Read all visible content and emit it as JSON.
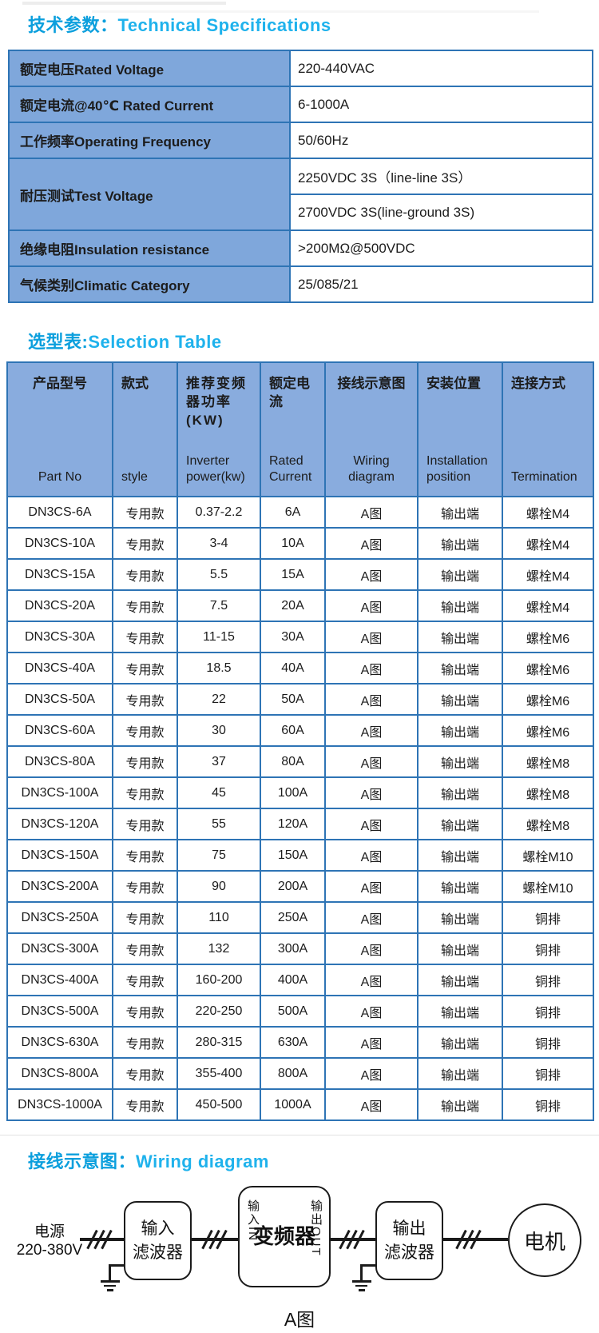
{
  "titles": {
    "tech_specs_zh": "技术参数：",
    "tech_specs_en": "Technical Specifications",
    "selection_zh": "选型表:",
    "selection_en": "Selection Table",
    "wiring_zh": "接线示意图：",
    "wiring_en": "Wiring diagram"
  },
  "colors": {
    "title_accent": "#0fa9e6",
    "table_border": "#2e74b5",
    "label_fill": "#7fa7db",
    "header_fill": "#89acde"
  },
  "spec_table": {
    "rows": [
      {
        "label": "额定电压Rated Voltage",
        "values": [
          "220-440VAC"
        ]
      },
      {
        "label": "额定电流@40℃ Rated Current",
        "values": [
          "6-1000A"
        ]
      },
      {
        "label": "工作频率Operating Frequency",
        "values": [
          "50/60Hz"
        ]
      },
      {
        "label": "耐压测试Test Voltage",
        "values": [
          "2250VDC 3S（line-line 3S）",
          "2700VDC 3S(line-ground 3S)"
        ]
      },
      {
        "label": "绝缘电阻Insulation resistance",
        "values": [
          ">200MΩ@500VDC"
        ]
      },
      {
        "label": "气候类别Climatic Category",
        "values": [
          "25/085/21"
        ]
      }
    ]
  },
  "selection_table": {
    "headers": [
      {
        "zh": "产品型号",
        "en": "Part No"
      },
      {
        "zh": "款式",
        "en": "style"
      },
      {
        "zh": "推荐变频器功率(KW)",
        "en": "Inverter power(kw)"
      },
      {
        "zh": "额定电流",
        "en": "Rated Current"
      },
      {
        "zh": "接线示意图",
        "en": "Wiring diagram"
      },
      {
        "zh": "安装位置",
        "en": "Installation position"
      },
      {
        "zh": "连接方式",
        "en": "Termination"
      }
    ],
    "rows": [
      [
        "DN3CS-6A",
        "专用款",
        "0.37-2.2",
        "6A",
        "A图",
        "输出端",
        "螺栓M4"
      ],
      [
        "DN3CS-10A",
        "专用款",
        "3-4",
        "10A",
        "A图",
        "输出端",
        "螺栓M4"
      ],
      [
        "DN3CS-15A",
        "专用款",
        "5.5",
        "15A",
        "A图",
        "输出端",
        "螺栓M4"
      ],
      [
        "DN3CS-20A",
        "专用款",
        "7.5",
        "20A",
        "A图",
        "输出端",
        "螺栓M4"
      ],
      [
        "DN3CS-30A",
        "专用款",
        "11-15",
        "30A",
        "A图",
        "输出端",
        "螺栓M6"
      ],
      [
        "DN3CS-40A",
        "专用款",
        "18.5",
        "40A",
        "A图",
        "输出端",
        "螺栓M6"
      ],
      [
        "DN3CS-50A",
        "专用款",
        "22",
        "50A",
        "A图",
        "输出端",
        "螺栓M6"
      ],
      [
        "DN3CS-60A",
        "专用款",
        "30",
        "60A",
        "A图",
        "输出端",
        "螺栓M6"
      ],
      [
        "DN3CS-80A",
        "专用款",
        "37",
        "80A",
        "A图",
        "输出端",
        "螺栓M8"
      ],
      [
        "DN3CS-100A",
        "专用款",
        "45",
        "100A",
        "A图",
        "输出端",
        "螺栓M8"
      ],
      [
        "DN3CS-120A",
        "专用款",
        "55",
        "120A",
        "A图",
        "输出端",
        "螺栓M8"
      ],
      [
        "DN3CS-150A",
        "专用款",
        "75",
        "150A",
        "A图",
        "输出端",
        "螺栓M10"
      ],
      [
        "DN3CS-200A",
        "专用款",
        "90",
        "200A",
        "A图",
        "输出端",
        "螺栓M10"
      ],
      [
        "DN3CS-250A",
        "专用款",
        "110",
        "250A",
        "A图",
        "输出端",
        "铜排"
      ],
      [
        "DN3CS-300A",
        "专用款",
        "132",
        "300A",
        "A图",
        "输出端",
        "铜排"
      ],
      [
        "DN3CS-400A",
        "专用款",
        "160-200",
        "400A",
        "A图",
        "输出端",
        "铜排"
      ],
      [
        "DN3CS-500A",
        "专用款",
        "220-250",
        "500A",
        "A图",
        "输出端",
        "铜排"
      ],
      [
        "DN3CS-630A",
        "专用款",
        "280-315",
        "630A",
        "A图",
        "输出端",
        "铜排"
      ],
      [
        "DN3CS-800A",
        "专用款",
        "355-400",
        "800A",
        "A图",
        "输出端",
        "铜排"
      ],
      [
        "DN3CS-1000A",
        "专用款",
        "450-500",
        "1000A",
        "A图",
        "输出端",
        "铜排"
      ]
    ]
  },
  "diagram": {
    "source_line1": "电源",
    "source_line2": "220-380V",
    "input_filter_line1": "输入",
    "input_filter_line2": "滤波器",
    "inverter": "变频器",
    "inverter_in": "输入IN",
    "inverter_out": "输出OUT",
    "output_filter_line1": "输出",
    "output_filter_line2": "滤波器",
    "motor": "电机",
    "caption": "A图"
  }
}
